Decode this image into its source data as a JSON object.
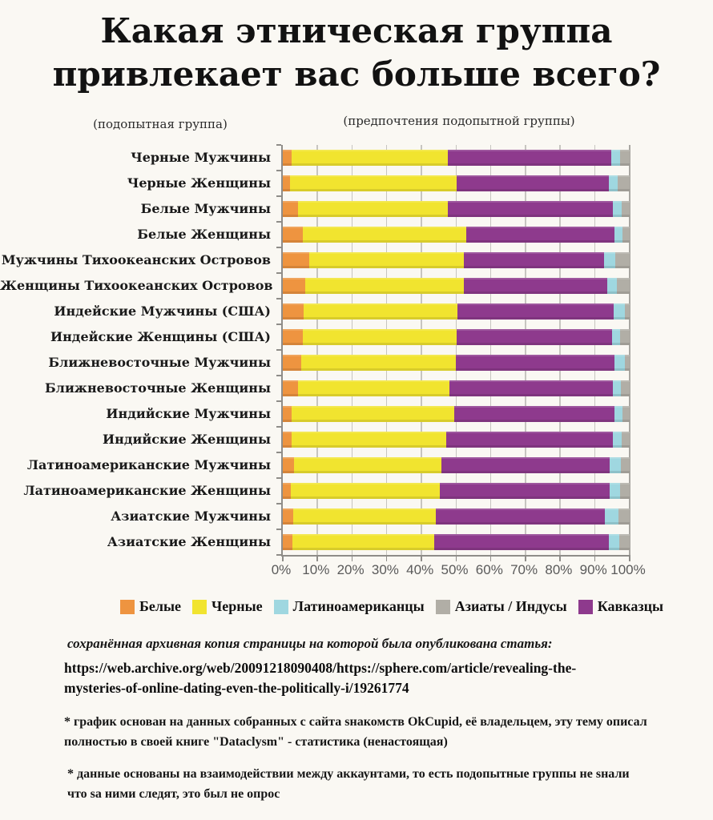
{
  "title": "Какая этническая группа\nпривлекает вас больше всего?",
  "subtitle_left": "(подопытная группа)",
  "subtitle_right": "(предпочтения подопытной группы)",
  "legend": [
    {
      "label": "Белые",
      "color": "#ee9440"
    },
    {
      "label": "Черные",
      "color": "#f1e42f"
    },
    {
      "label": "Латиноамериканцы",
      "color": "#9fd7e0"
    },
    {
      "label": "Азиаты / Индусы",
      "color": "#b1aea6"
    },
    {
      "label": "Кавказцы",
      "color": "#8e3a8d"
    }
  ],
  "chart_data": {
    "type": "bar",
    "orientation": "horizontal",
    "stacked": true,
    "grid": true,
    "legend_position": "bottom",
    "xlim": [
      0,
      100
    ],
    "x_ticks": [
      "0%",
      "10%",
      "20%",
      "30%",
      "40%",
      "50%",
      "60%",
      "70%",
      "80%",
      "90%",
      "100%"
    ],
    "categories": [
      "Черные Мужчины",
      "Черные Женщины",
      "Белые Мужчины",
      "Белые Женщины",
      "Мужчины Тихоокеанских Островов",
      "Женщины Тихоокеанских Островов",
      "Индейские Мужчины (США)",
      "Индейские Женщины (США)",
      "Ближневосточные Мужчины",
      "Ближневосточные Женщины",
      "Индийские Мужчины",
      "Индийские Женщины",
      "Латиноамериканские Мужчины",
      "Латиноамериканские Женщины",
      "Азиатские Мужчины",
      "Азиатские Женщины"
    ],
    "series": [
      {
        "name": "Белые",
        "color": "#ee9440",
        "values": [
          2.5,
          2.1,
          4.4,
          5.8,
          7.6,
          6.5,
          6.0,
          5.8,
          5.3,
          4.4,
          2.5,
          2.5,
          3.2,
          2.3,
          3.0,
          2.8
        ]
      },
      {
        "name": "Черные",
        "color": "#f1e42f",
        "values": [
          45.0,
          48.1,
          43.2,
          47.0,
          44.7,
          45.8,
          44.3,
          44.4,
          44.5,
          43.6,
          46.9,
          44.6,
          42.5,
          43.0,
          41.0,
          40.8
        ]
      },
      {
        "name": "Кавказцы",
        "color": "#8e3a8d",
        "values": [
          47.2,
          43.8,
          47.6,
          42.8,
          40.3,
          41.2,
          45.1,
          44.7,
          45.8,
          47.2,
          46.2,
          48.1,
          48.5,
          48.9,
          48.8,
          50.4
        ]
      },
      {
        "name": "Латиноамериканцы",
        "color": "#9fd7e0",
        "values": [
          2.5,
          2.5,
          2.5,
          2.3,
          3.2,
          2.8,
          3.2,
          2.3,
          3.0,
          2.3,
          2.3,
          2.5,
          3.3,
          3.0,
          4.0,
          3.0
        ]
      },
      {
        "name": "Азиаты / Индусы",
        "color": "#b1aea6",
        "values": [
          2.8,
          3.5,
          2.3,
          2.1,
          4.2,
          3.7,
          1.4,
          2.8,
          1.4,
          2.5,
          2.1,
          2.3,
          2.5,
          2.8,
          3.2,
          3.0
        ]
      }
    ]
  },
  "footer": {
    "archive_note": "сохранённая архивная копия страницы на которой была опубликована статья:",
    "archive_url": "https://web.archive.org/web/20091218090408/https://sphere.com/article/revealing-the-\nmysteries-of-online-dating-even-the-politically-i/19261774",
    "footnote1": "* график основан на данных собранных с сайта sнакомств OkCupid, её владельцем, эту тему описал\nполностью в своей книге \"Dataclysm\" - статистика (ненастоящая)",
    "footnote2": "* данные основаны на взаимодействии между аккаунтами, то есть подопытные группы не sнали\nчто sа ними следят, это был не опрос"
  }
}
